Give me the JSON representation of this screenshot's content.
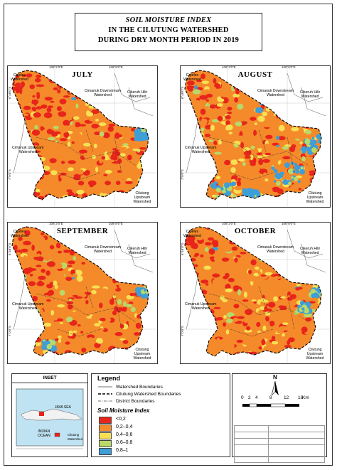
{
  "title": {
    "line1": "SOIL MOISTURE INDEX",
    "line2": "IN THE CILUTUNG WATERSHED",
    "line3": "DURING DRY MONTH PERIOD IN 2019"
  },
  "panels": [
    {
      "id": "july",
      "month": "JULY",
      "labels": {
        "nw": "Cipeles\nWatershed",
        "ne1": "Cimanuk Downstream\nWatershed",
        "ne2": "Cikeruh Hilir\nWatershed",
        "w": "Cimanuk Upstream\nWatershed",
        "se": "Cilutung Upstream\nWatershed"
      },
      "coords": {
        "top_left": "108°2'0\"E",
        "top_right": "108°8'0\"E",
        "left_top": "6°48'0\"S",
        "left_bottom": "7°0'0\"S"
      }
    },
    {
      "id": "august",
      "month": "AUGUST",
      "labels": {
        "nw": "Cipeles\nWatershed",
        "ne1": "Cimanuk Downstream\nWatershed",
        "ne2": "Cikeruh Hilir\nWatershed",
        "w": "Cimanuk Upstream\nWatershed",
        "se": "Cilutung Upstream\nWatershed"
      },
      "coords": {
        "top_left": "108°2'0\"E",
        "top_right": "108°8'0\"E",
        "left_top": "6°48'0\"S",
        "left_bottom": "7°0'0\"S"
      }
    },
    {
      "id": "september",
      "month": "SEPTEMBER",
      "labels": {
        "nw": "Cipeles\nWatershed",
        "ne1": "Cimanuk Downstream\nWatershed",
        "ne2": "Cikeruh Hilir\nWatershed",
        "w": "Cimanuk Upstream\nWatershed",
        "se": "Cilutung Upstream\nWatershed"
      },
      "coords": {
        "top_left": "108°2'0\"E",
        "top_right": "108°8'0\"E",
        "left_top": "6°48'0\"S",
        "left_bottom": "7°0'0\"S"
      }
    },
    {
      "id": "october",
      "month": "OCTOBER",
      "labels": {
        "nw": "Cipeles\nWatershed",
        "ne1": "Cimanuk Downstream\nWatershed",
        "ne2": "Cikeruh Hilir\nWatershed",
        "w": "Cimanuk Upstream\nWatershed",
        "se": "Cilutung Upstream\nWatershed"
      },
      "coords": {
        "top_left": "108°2'0\"E",
        "top_right": "108°8'0\"E",
        "left_top": "6°48'0\"S",
        "left_bottom": "7°0'0\"S"
      }
    }
  ],
  "inset": {
    "title": "INSET",
    "sea_north": "JAVA SEA",
    "sea_south": "INDIAN\nOCEAN",
    "area_label": "Cilutung\nWatershed"
  },
  "legend": {
    "title": "Legend",
    "lines": [
      {
        "label": "Watershed Boundaries",
        "style": "solid"
      },
      {
        "label": "Cilutung Watershed Boundaries",
        "style": "dashed"
      },
      {
        "label": "District Boundaries",
        "style": "dashdot"
      }
    ],
    "soil_title": "Soil Moisture Index",
    "classes": [
      {
        "label": "<0,2",
        "color": "#e8251b"
      },
      {
        "label": "0,2–0,4",
        "color": "#f58a2a"
      },
      {
        "label": "0,4–0,6",
        "color": "#f7e054"
      },
      {
        "label": "0,6–0,8",
        "color": "#b8d96a"
      },
      {
        "label": "0,8–1",
        "color": "#3d9ed8"
      }
    ]
  },
  "north_arrow": {
    "label": "N"
  },
  "scale": {
    "ticks": [
      "0",
      "2",
      "4",
      "8",
      "12",
      "16"
    ],
    "unit": "Km"
  }
}
